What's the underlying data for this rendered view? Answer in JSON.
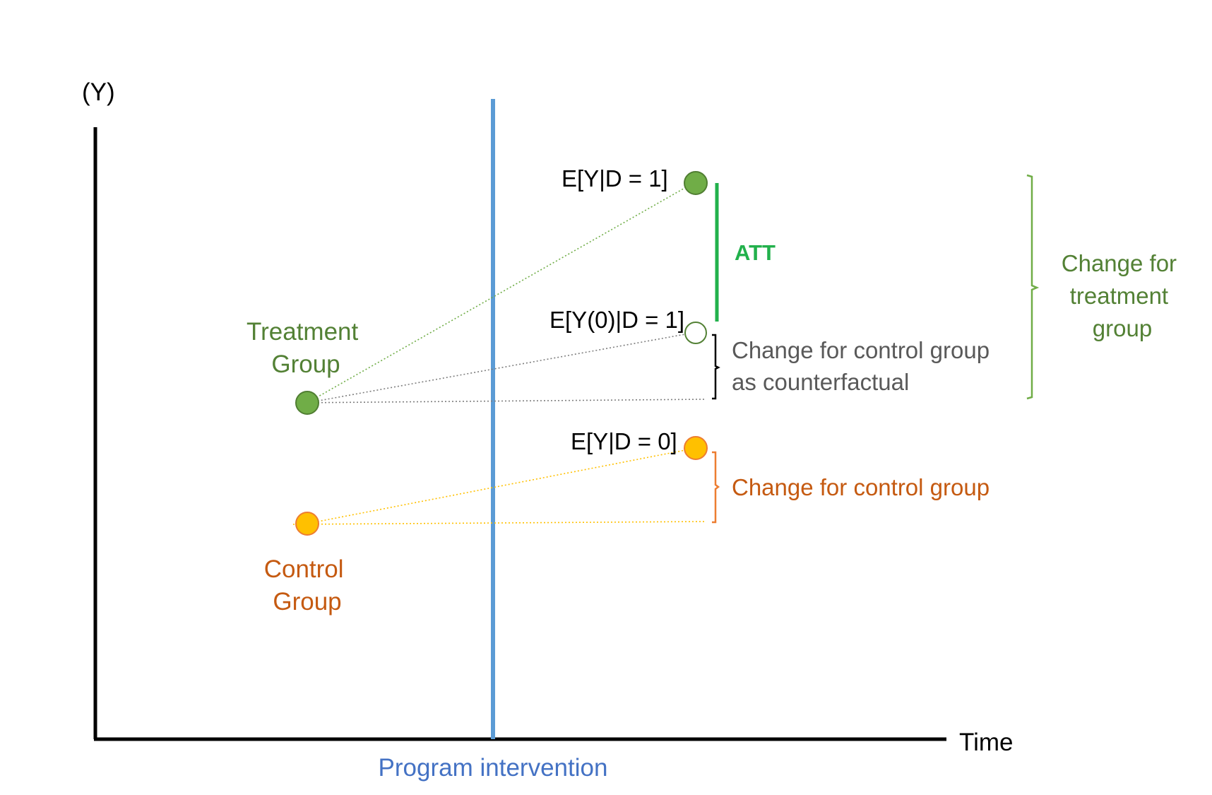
{
  "axes": {
    "y_label": "(Y)",
    "x_label": "Time"
  },
  "intervention": {
    "label": "Program intervention",
    "color": "#5b9bd5"
  },
  "groups": {
    "treatment": {
      "label_line1": "Treatment",
      "label_line2": "Group",
      "color": "#538135",
      "dot_color": "#70ad47"
    },
    "control": {
      "label_line1": "Control",
      "label_line2": "Group",
      "color": "#c55a11",
      "dot_color": "#ffc000"
    }
  },
  "points": {
    "treated_post": "E[Y|D = 1]",
    "counterfactual": "E[Y(0)|D = 1]",
    "control_post": "E[Y|D = 0]"
  },
  "brackets": {
    "att": {
      "label": "ATT",
      "color": "#22b14c"
    },
    "counterfactual_change": {
      "line1": "Change for control group",
      "line2": "as counterfactual",
      "color": "#595959"
    },
    "control_change": {
      "label": "Change for control group",
      "color": "#c55a11"
    },
    "treatment_change": {
      "line1": "Change for",
      "line2": "treatment",
      "line3": "group",
      "color": "#70ad47"
    }
  }
}
